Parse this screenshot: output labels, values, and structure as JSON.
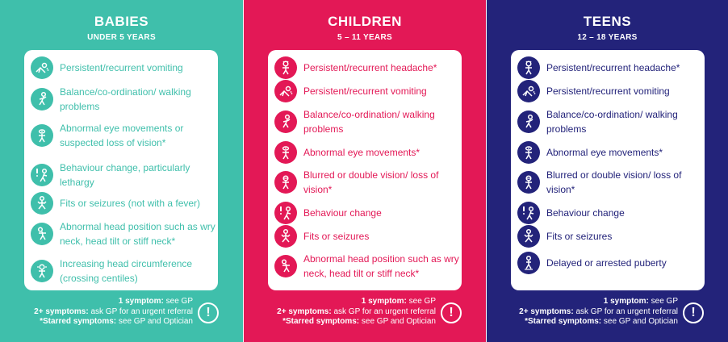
{
  "panels": [
    {
      "title": "BABIES",
      "subtitle": "UNDER 5 YEARS",
      "color": "#3fbfab",
      "symptoms": [
        {
          "text": "Persistent/recurrent vomiting",
          "icon": "vomiting-icon"
        },
        {
          "text": "Balance/co-ordination/ walking problems",
          "icon": "balance-icon"
        },
        {
          "text": "Abnormal eye movements or suspected loss of vision*",
          "icon": "eye-movement-icon"
        },
        {
          "text": "Behaviour change, particularly lethargy",
          "icon": "behaviour-icon"
        },
        {
          "text": "Fits or seizures (not with a fever)",
          "icon": "seizure-icon"
        },
        {
          "text": "Abnormal head position such as wry neck, head tilt or stiff neck*",
          "icon": "head-tilt-icon"
        },
        {
          "text": "Increasing head circumference (crossing centiles)",
          "icon": "head-circumference-icon"
        }
      ]
    },
    {
      "title": "CHILDREN",
      "subtitle": "5 – 11 YEARS",
      "color": "#e31856",
      "symptoms": [
        {
          "text": "Persistent/recurrent headache*",
          "icon": "headache-icon"
        },
        {
          "text": "Persistent/recurrent vomiting",
          "icon": "vomiting-icon"
        },
        {
          "text": "Balance/co-ordination/ walking problems",
          "icon": "balance-icon"
        },
        {
          "text": "Abnormal eye movements*",
          "icon": "eye-movement-icon"
        },
        {
          "text": "Blurred or double vision/ loss of vision*",
          "icon": "blurred-vision-icon"
        },
        {
          "text": "Behaviour change",
          "icon": "behaviour-icon"
        },
        {
          "text": "Fits or seizures",
          "icon": "seizure-icon"
        },
        {
          "text": "Abnormal head position such as wry neck, head tilt or stiff neck*",
          "icon": "head-tilt-icon"
        }
      ]
    },
    {
      "title": "TEENS",
      "subtitle": "12 – 18 YEARS",
      "color": "#23237a",
      "symptoms": [
        {
          "text": "Persistent/recurrent headache*",
          "icon": "headache-icon"
        },
        {
          "text": "Persistent/recurrent vomiting",
          "icon": "vomiting-icon"
        },
        {
          "text": "Balance/co-ordination/ walking problems",
          "icon": "balance-icon"
        },
        {
          "text": "Abnormal eye movements*",
          "icon": "eye-movement-icon"
        },
        {
          "text": "Blurred or double vision/ loss of vision*",
          "icon": "blurred-vision-icon"
        },
        {
          "text": "Behaviour change",
          "icon": "behaviour-icon"
        },
        {
          "text": "Fits or seizures",
          "icon": "seizure-icon"
        },
        {
          "text": "Delayed or arrested puberty",
          "icon": "puberty-icon"
        }
      ]
    }
  ],
  "footer": {
    "line1_bold": "1 symptom:",
    "line1_rest": " see GP",
    "line2_bold": "2+ symptoms:",
    "line2_rest": " ask GP for an urgent referral",
    "line3_bold": "*Starred symptoms:",
    "line3_rest": " see GP and Optician",
    "alert_glyph": "!"
  }
}
